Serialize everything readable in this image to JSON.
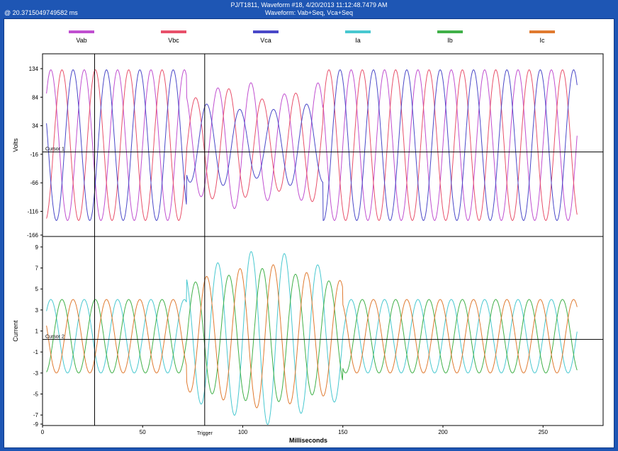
{
  "header": {
    "title_line1": "PJ/T1811, Waveform #18, 4/20/2013 11:12:48.7479 AM",
    "title_line2": "Waveform: Vab+Seq, Vca+Seq",
    "timestamp": "@ 20.3715049749582 ms"
  },
  "colors": {
    "header_bg": "#1e56b4",
    "Vab": "#c04fd0",
    "Vbc": "#e8506a",
    "Vca": "#4a48c8",
    "Ia": "#48c8d0",
    "Ib": "#40b048",
    "Ic": "#e07a30"
  },
  "legend": [
    {
      "name": "Vab",
      "color": "#c04fd0"
    },
    {
      "name": "Vbc",
      "color": "#e8506a"
    },
    {
      "name": "Vca",
      "color": "#4a48c8"
    },
    {
      "name": "Ia",
      "color": "#48c8d0"
    },
    {
      "name": "Ib",
      "color": "#40b048"
    },
    {
      "name": "Ic",
      "color": "#e07a30"
    }
  ],
  "chart_data": {
    "type": "line",
    "xlabel": "Milliseconds",
    "xlim": [
      0,
      280
    ],
    "xticks": [
      "0",
      "50",
      "100",
      "150",
      "200",
      "250"
    ],
    "trigger_label": "Trigger",
    "cursor_x_ms": [
      26,
      81
    ],
    "grid": false,
    "legend_position": "top",
    "panels": [
      {
        "ylabel": "Volts",
        "ylim": [
          -160,
          160
        ],
        "yticks": [
          "134",
          "84",
          "34",
          "-16",
          "-66",
          "-116",
          "-166"
        ],
        "cursor_label": "Cursor 1",
        "series": [
          {
            "name": "Vab",
            "shape": "sine",
            "amplitude": 132,
            "frequency_hz": 60,
            "phase_deg": 0,
            "disturbance_ms": [
              72,
              140
            ],
            "sag_factor": 0.85
          },
          {
            "name": "Vbc",
            "shape": "sine",
            "amplitude": 132,
            "frequency_hz": 60,
            "phase_deg": -120,
            "disturbance_ms": [
              72,
              140
            ],
            "sag_factor": 0.75
          },
          {
            "name": "Vca",
            "shape": "sine",
            "amplitude": 132,
            "frequency_hz": 60,
            "phase_deg": 120,
            "disturbance_ms": [
              72,
              140
            ],
            "sag_factor": 0.55
          }
        ]
      },
      {
        "ylabel": "Current",
        "ylim": [
          -8,
          10
        ],
        "yticks": [
          "9",
          "7",
          "5",
          "3",
          "1",
          "-1",
          "-3",
          "-5",
          "-7",
          "-9"
        ],
        "cursor_label": "Cursor 2",
        "series": [
          {
            "name": "Ia",
            "shape": "sine",
            "offset": 0.5,
            "amplitude": 3.5,
            "frequency_hz": 60,
            "phase_deg": 0,
            "disturbance_ms": [
              72,
              150
            ],
            "peak": 8.5
          },
          {
            "name": "Ib",
            "shape": "sine",
            "offset": 0.5,
            "amplitude": 3.5,
            "frequency_hz": 60,
            "phase_deg": -120,
            "disturbance_ms": [
              72,
              150
            ],
            "peak": 6.5
          },
          {
            "name": "Ic",
            "shape": "sine",
            "offset": 0.5,
            "amplitude": 3.5,
            "frequency_hz": 60,
            "phase_deg": 120,
            "disturbance_ms": [
              72,
              150
            ],
            "peak": 7.0
          }
        ]
      }
    ]
  }
}
